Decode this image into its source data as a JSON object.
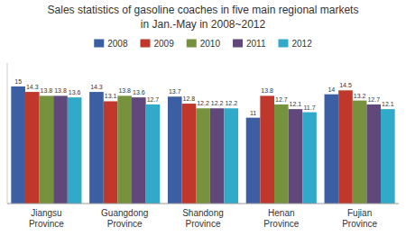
{
  "chart_data": {
    "type": "bar",
    "title": "Sales statistics of gasoline coaches in five main regional markets",
    "subtitle": "in Jan.-May in 2008~2012",
    "categories": [
      "Jiangsu\nProvince",
      "Guangdong\nProvince",
      "Shandong\nProvince",
      "Henan\nProvince",
      "Fujian\nProvince"
    ],
    "series": [
      {
        "name": "2008",
        "color": "#3c5fa3",
        "values": [
          15.0,
          14.3,
          13.7,
          11.0,
          14.0
        ]
      },
      {
        "name": "2009",
        "color": "#c0372b",
        "values": [
          14.3,
          13.1,
          12.8,
          13.8,
          14.5
        ]
      },
      {
        "name": "2010",
        "color": "#76923c",
        "values": [
          13.8,
          13.8,
          12.2,
          12.7,
          13.2
        ]
      },
      {
        "name": "2011",
        "color": "#60497a",
        "values": [
          13.8,
          13.6,
          12.2,
          12.1,
          12.7
        ]
      },
      {
        "name": "2012",
        "color": "#31a9c9",
        "values": [
          13.6,
          12.7,
          12.2,
          11.7,
          12.1
        ]
      }
    ],
    "ylim": [
      0,
      18
    ],
    "data_labels": true,
    "tick_labels": "x",
    "legend": "top"
  }
}
